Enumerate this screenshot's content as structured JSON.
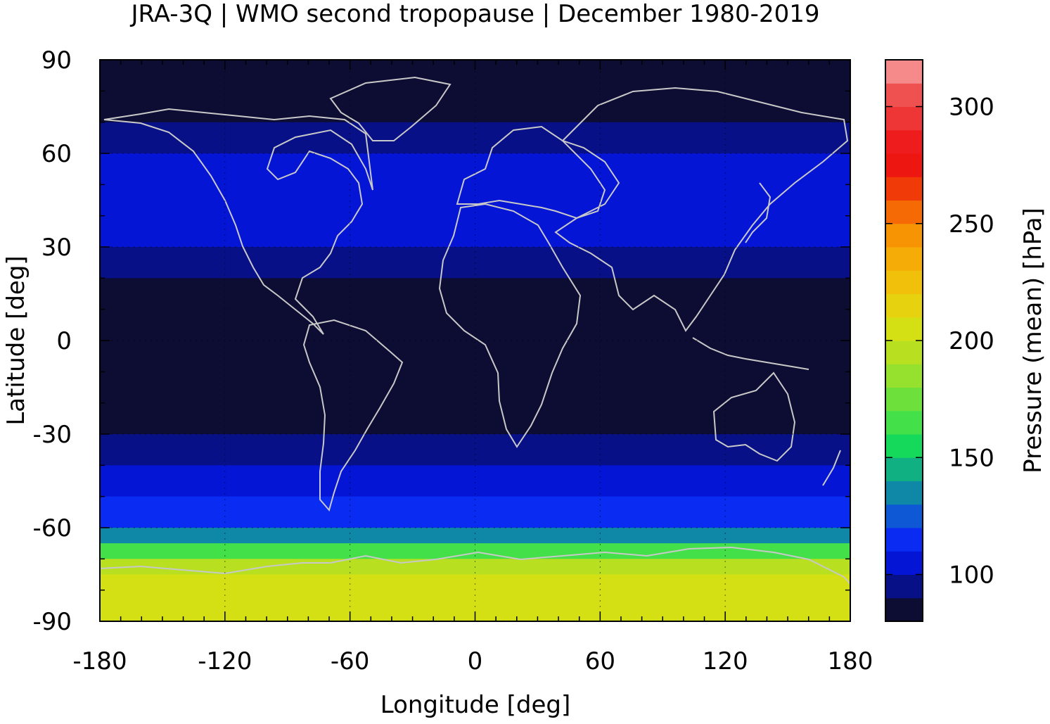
{
  "chart_data": {
    "type": "heatmap",
    "title": "JRA-3Q | WMO second tropopause | December 1980-2019",
    "xlabel": "Longitude [deg]",
    "ylabel": "Latitude [deg]",
    "colorbar_label": "Pressure (mean) [hPa]",
    "xlim": [
      -180,
      180
    ],
    "ylim": [
      -90,
      90
    ],
    "x_ticks": [
      "-180",
      "-120",
      "-60",
      "0",
      "60",
      "120",
      "180"
    ],
    "y_ticks": [
      "90",
      "60",
      "30",
      "0",
      "-30",
      "-60",
      "-90"
    ],
    "colorbar_range": [
      80,
      320
    ],
    "colorbar_ticks": [
      "300",
      "250",
      "200",
      "150",
      "100"
    ],
    "colorbar_levels": [
      {
        "value": 80,
        "color": "#0d0d33"
      },
      {
        "value": 90,
        "color": "#071087"
      },
      {
        "value": 100,
        "color": "#0515d6"
      },
      {
        "value": 110,
        "color": "#0a2cf2"
      },
      {
        "value": 120,
        "color": "#0e58d6"
      },
      {
        "value": 130,
        "color": "#0f88a8"
      },
      {
        "value": 140,
        "color": "#11b082"
      },
      {
        "value": 150,
        "color": "#14d95a"
      },
      {
        "value": 160,
        "color": "#44e04a"
      },
      {
        "value": 170,
        "color": "#6ee03c"
      },
      {
        "value": 180,
        "color": "#96e02e"
      },
      {
        "value": 190,
        "color": "#b8e020"
      },
      {
        "value": 200,
        "color": "#d4e014"
      },
      {
        "value": 210,
        "color": "#e6d20e"
      },
      {
        "value": 220,
        "color": "#f0c00a"
      },
      {
        "value": 230,
        "color": "#f5ac06"
      },
      {
        "value": 240,
        "color": "#f79404"
      },
      {
        "value": 250,
        "color": "#f56a04"
      },
      {
        "value": 260,
        "color": "#f03a08"
      },
      {
        "value": 270,
        "color": "#ee1610"
      },
      {
        "value": 280,
        "color": "#ee1c1c"
      },
      {
        "value": 290,
        "color": "#ee3636"
      },
      {
        "value": 300,
        "color": "#ef5050"
      },
      {
        "value": 310,
        "color": "#f68a8a"
      },
      {
        "value": 320,
        "color": "#fdcdcd"
      }
    ],
    "zonal_mean_pressure_by_latitude": {
      "lat": [
        90,
        80,
        70,
        60,
        50,
        40,
        30,
        20,
        10,
        0,
        -10,
        -20,
        -30,
        -40,
        -50,
        -60,
        -65,
        -70,
        -75,
        -80,
        -85,
        -90
      ],
      "pressure_hPa": [
        80,
        80,
        95,
        100,
        105,
        105,
        95,
        80,
        80,
        80,
        80,
        88,
        98,
        105,
        110,
        130,
        160,
        190,
        200,
        200,
        205,
        210
      ]
    },
    "coastline_color": "#c8c8c8",
    "grid": "dotted"
  }
}
